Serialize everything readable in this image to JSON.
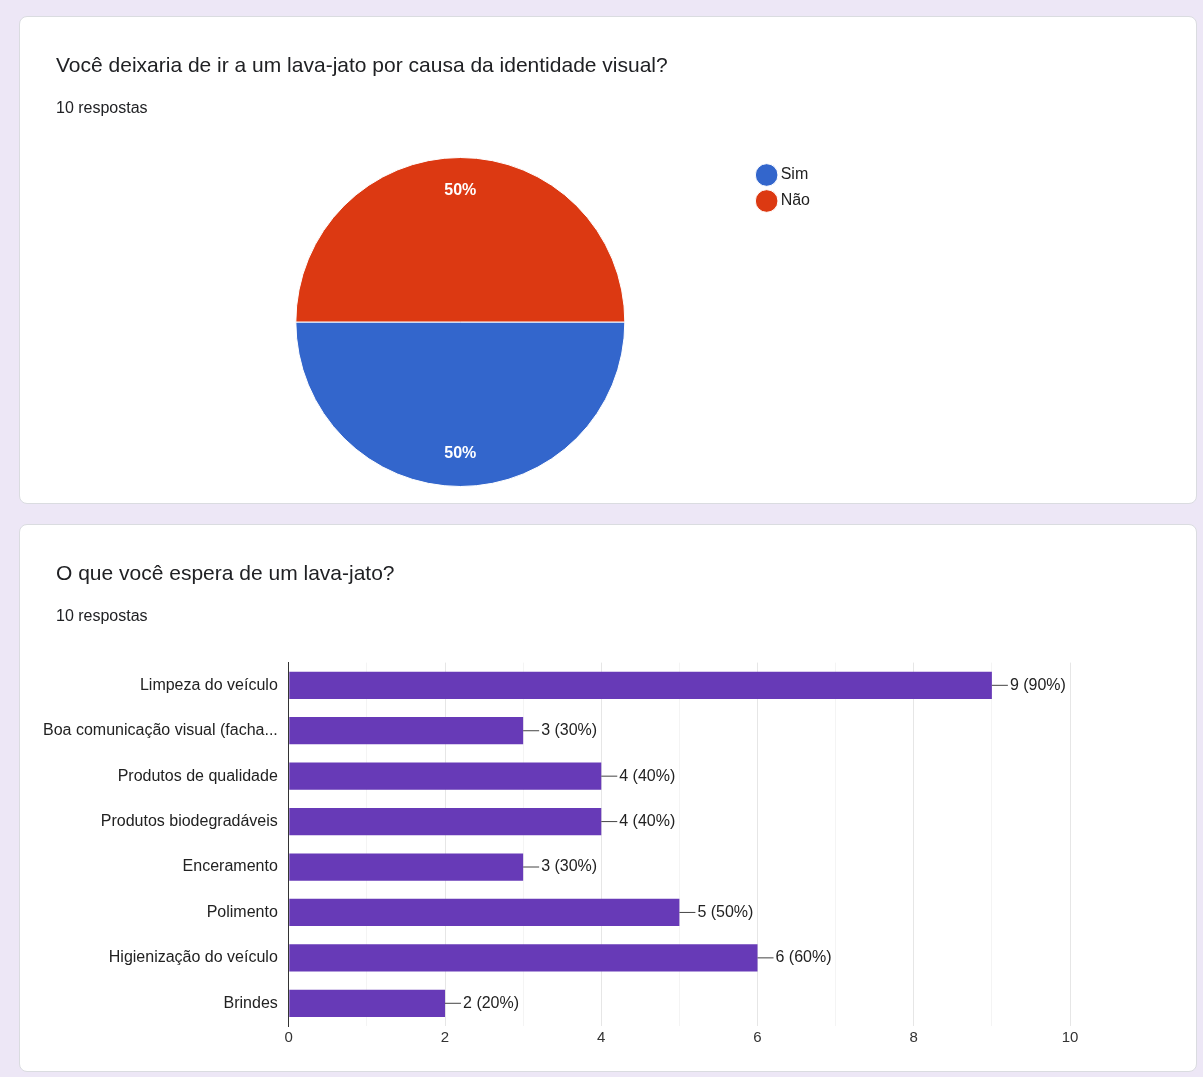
{
  "chart_data": [
    {
      "type": "pie",
      "title": "Você deixaria de ir a um lava-jato por causa da identidade visual?",
      "subtitle": "10 respostas",
      "categories": [
        "Sim",
        "Não"
      ],
      "values": [
        50,
        50
      ],
      "colors": [
        "#3366cc",
        "#dc3912"
      ],
      "value_labels": [
        "50%",
        "50%"
      ],
      "legend": "right"
    },
    {
      "type": "bar",
      "orientation": "horizontal",
      "title": "O que você espera de um lava-jato?",
      "subtitle": "10 respostas",
      "categories": [
        "Limpeza do veículo",
        "Boa comunicação visual (facha...",
        "Produtos de qualidade",
        "Produtos biodegradáveis",
        "Enceramento",
        "Polimento",
        "Higienização do veículo",
        "Brindes"
      ],
      "series": [
        {
          "color": "#673ab7",
          "values": [
            9,
            3,
            4,
            4,
            3,
            5,
            6,
            2
          ]
        }
      ],
      "value_labels": [
        "9 (90%)",
        "3 (30%)",
        "4 (40%)",
        "4 (40%)",
        "3 (30%)",
        "5 (50%)",
        "6 (60%)",
        "2 (20%)"
      ],
      "xlim": [
        0,
        10
      ],
      "xticks": [
        0,
        {
          "value": 1,
          "label": null
        },
        2,
        {
          "value": 3,
          "label": null
        },
        4,
        {
          "value": 5,
          "label": null
        },
        6,
        {
          "value": 7,
          "label": null
        },
        8,
        {
          "value": 9,
          "label": null
        },
        10
      ],
      "grid": "x",
      "legend": false
    }
  ]
}
